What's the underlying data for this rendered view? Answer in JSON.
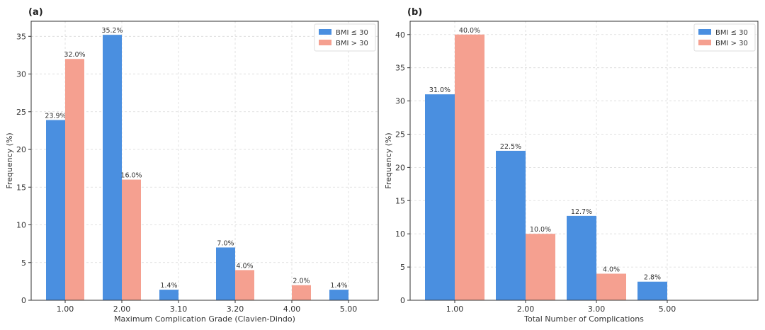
{
  "chart_data": [
    {
      "type": "bar",
      "panel_label": "(a)",
      "title": "",
      "xlabel": "Maximum Complication Grade (Clavien-Dindo)",
      "ylabel": "Frequency (%)",
      "ylim": [
        0,
        37
      ],
      "yticks": [
        0,
        5,
        10,
        15,
        20,
        25,
        30,
        35
      ],
      "grid": true,
      "legend_position": "top-right",
      "categories": [
        "1.00",
        "2.00",
        "3.10",
        "3.20",
        "4.00",
        "5.00"
      ],
      "series": [
        {
          "name": "BMI ≤ 30",
          "color": "#4a8fe0",
          "values": [
            23.9,
            35.2,
            1.4,
            7.0,
            null,
            1.4
          ],
          "labels": [
            "23.9%",
            "35.2%",
            "1.4%",
            "7.0%",
            null,
            "1.4%"
          ]
        },
        {
          "name": "BMI > 30",
          "color": "#f5a090",
          "values": [
            32.0,
            16.0,
            null,
            4.0,
            2.0,
            null
          ],
          "labels": [
            "32.0%",
            "16.0%",
            null,
            "4.0%",
            "2.0%",
            null
          ]
        }
      ]
    },
    {
      "type": "bar",
      "panel_label": "(b)",
      "title": "",
      "xlabel": "Total Number of Complications",
      "ylabel": "Frequency (%)",
      "ylim": [
        0,
        42
      ],
      "yticks": [
        0,
        5,
        10,
        15,
        20,
        25,
        30,
        35,
        40
      ],
      "grid": true,
      "legend_position": "top-right",
      "categories": [
        "1.00",
        "2.00",
        "3.00",
        "5.00"
      ],
      "series": [
        {
          "name": "BMI ≤ 30",
          "color": "#4a8fe0",
          "values": [
            31.0,
            22.5,
            12.7,
            2.8
          ],
          "labels": [
            "31.0%",
            "22.5%",
            "12.7%",
            "2.8%"
          ]
        },
        {
          "name": "BMI > 30",
          "color": "#f5a090",
          "values": [
            40.0,
            10.0,
            4.0,
            null
          ],
          "labels": [
            "40.0%",
            "10.0%",
            "4.0%",
            null
          ]
        }
      ]
    }
  ]
}
